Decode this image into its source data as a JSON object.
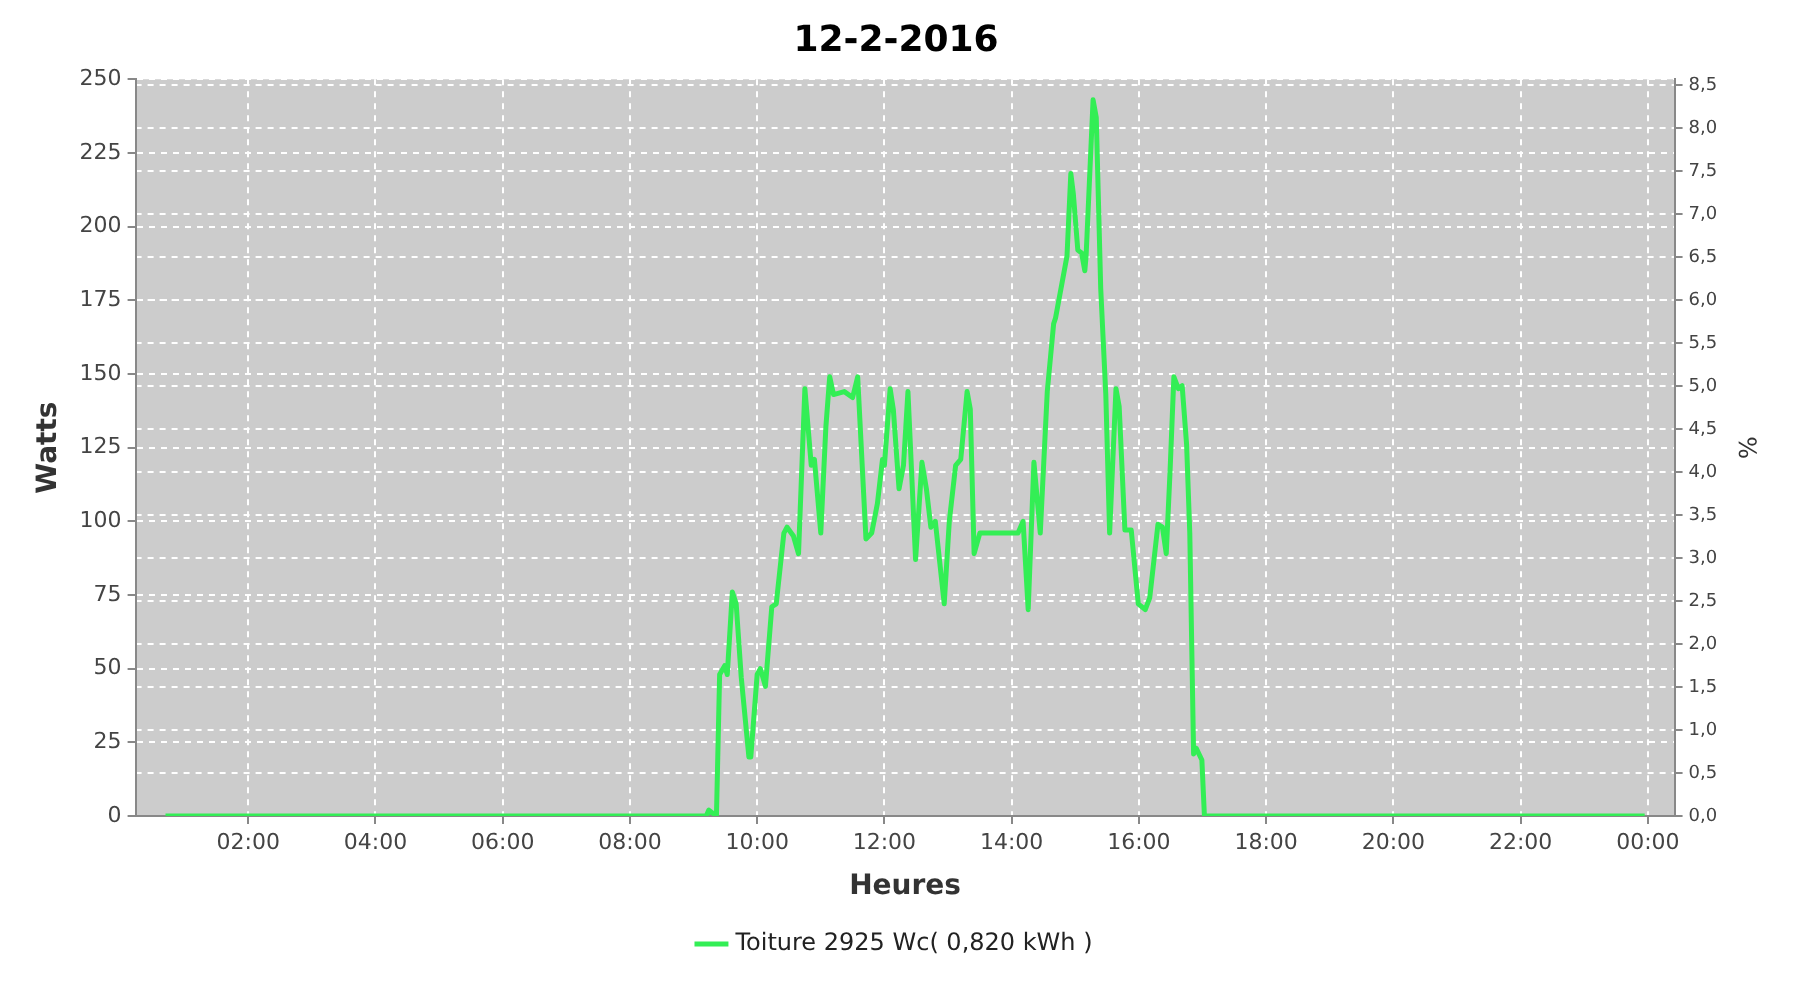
{
  "chart_data": {
    "type": "line",
    "title": "12-2-2016",
    "xlabel": "Heures",
    "ylabel": "Watts",
    "y2label": "%",
    "x": [
      0.7,
      9.2,
      9.24,
      9.36,
      9.41,
      9.49,
      9.53,
      9.61,
      9.67,
      9.75,
      9.87,
      9.9,
      10.0,
      10.05,
      10.13,
      10.23,
      10.3,
      10.42,
      10.47,
      10.57,
      10.65,
      10.75,
      10.8,
      10.85,
      10.9,
      11.0,
      11.08,
      11.14,
      11.2,
      11.37,
      11.5,
      11.58,
      11.71,
      11.8,
      11.89,
      11.97,
      12.0,
      12.09,
      12.14,
      12.23,
      12.3,
      12.37,
      12.49,
      12.59,
      12.66,
      12.73,
      12.8,
      12.94,
      13.02,
      13.12,
      13.2,
      13.3,
      13.35,
      13.41,
      13.5,
      14.1,
      14.18,
      14.26,
      14.35,
      14.45,
      14.56,
      14.66,
      14.69,
      14.87,
      14.93,
      14.97,
      15.04,
      15.1,
      15.15,
      15.17,
      15.28,
      15.33,
      15.4,
      15.48,
      15.54,
      15.64,
      15.69,
      15.78,
      15.88,
      15.99,
      16.1,
      16.17,
      16.3,
      16.37,
      16.43,
      16.49,
      16.55,
      16.62,
      16.68,
      16.75,
      16.8,
      16.86,
      16.9,
      16.99,
      17.03,
      23.95
    ],
    "series": [
      {
        "name": "Toiture 2925 Wc( 0,820 kWh )",
        "color": "#33ee55",
        "values": [
          0,
          0,
          2,
          0,
          48,
          51,
          48,
          76,
          72,
          47,
          20,
          20,
          48,
          50,
          44,
          71,
          72,
          96,
          98,
          95,
          89,
          145,
          132,
          119,
          121,
          96,
          132,
          149,
          143,
          144,
          142,
          149,
          94,
          96,
          106,
          121,
          119,
          145,
          138,
          111,
          119,
          144,
          87,
          120,
          111,
          98,
          100,
          72,
          100,
          119,
          121,
          144,
          138,
          89,
          96,
          96,
          100,
          70,
          120,
          96,
          144,
          167,
          169,
          190,
          218,
          211,
          192,
          191,
          185,
          190,
          243,
          237,
          179,
          143,
          96,
          145,
          139,
          97,
          97,
          72,
          70,
          74,
          99,
          98,
          89,
          117,
          149,
          145,
          146,
          126,
          96,
          21,
          23,
          19,
          0,
          0
        ]
      }
    ],
    "xlim": [
      0.23,
      24.42
    ],
    "xticks": [
      {
        "value": 2,
        "label": "02:00"
      },
      {
        "value": 4,
        "label": "04:00"
      },
      {
        "value": 6,
        "label": "06:00"
      },
      {
        "value": 8,
        "label": "08:00"
      },
      {
        "value": 10,
        "label": "10:00"
      },
      {
        "value": 12,
        "label": "12:00"
      },
      {
        "value": 14,
        "label": "14:00"
      },
      {
        "value": 16,
        "label": "16:00"
      },
      {
        "value": 18,
        "label": "18:00"
      },
      {
        "value": 20,
        "label": "20:00"
      },
      {
        "value": 22,
        "label": "22:00"
      },
      {
        "value": 24,
        "label": "00:00"
      }
    ],
    "ylim": [
      0,
      250
    ],
    "yticks": [
      0,
      25,
      50,
      75,
      100,
      125,
      150,
      175,
      200,
      225,
      250
    ],
    "y2lim": [
      0,
      8.57
    ],
    "y2ticks": [
      {
        "value": 0,
        "label": "0,0"
      },
      {
        "value": 0.5,
        "label": "0,5"
      },
      {
        "value": 1,
        "label": "1,0"
      },
      {
        "value": 1.5,
        "label": "1,5"
      },
      {
        "value": 2,
        "label": "2,0"
      },
      {
        "value": 2.5,
        "label": "2,5"
      },
      {
        "value": 3,
        "label": "3,0"
      },
      {
        "value": 3.5,
        "label": "3,5"
      },
      {
        "value": 4,
        "label": "4,0"
      },
      {
        "value": 4.5,
        "label": "4,5"
      },
      {
        "value": 5,
        "label": "5,0"
      },
      {
        "value": 5.5,
        "label": "5,5"
      },
      {
        "value": 6,
        "label": "6,0"
      },
      {
        "value": 6.5,
        "label": "6,5"
      },
      {
        "value": 7,
        "label": "7,0"
      },
      {
        "value": 7.5,
        "label": "7,5"
      },
      {
        "value": 8,
        "label": "8,0"
      },
      {
        "value": 8.5,
        "label": "8,5"
      }
    ],
    "grid": true,
    "legend": "bottom",
    "line_style": "solid"
  }
}
